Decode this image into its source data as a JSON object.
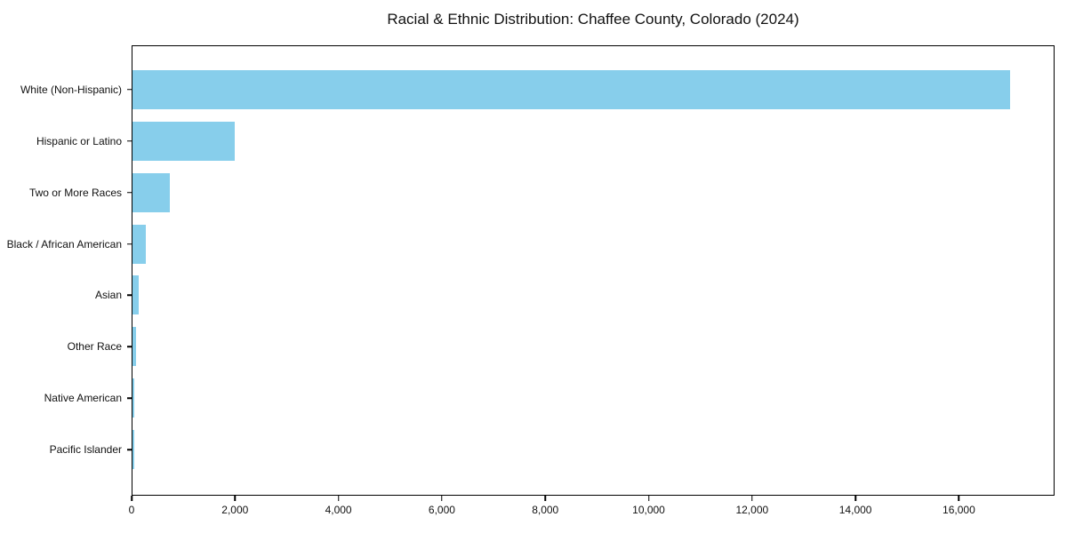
{
  "title": "Racial & Ethnic Distribution: Chaffee County, Colorado (2024)",
  "colors": {
    "bar": "#87CEEB",
    "spine": "#000000",
    "text": "#111111",
    "background": "#ffffff"
  },
  "chart_data": {
    "type": "bar",
    "orientation": "horizontal",
    "title": "Racial & Ethnic Distribution: Chaffee County, Colorado (2024)",
    "xlabel": "",
    "ylabel": "",
    "categories": [
      "White (Non-Hispanic)",
      "Hispanic or Latino",
      "Two or More Races",
      "Black / African American",
      "Asian",
      "Other Race",
      "Native American",
      "Pacific Islander"
    ],
    "values": [
      17000,
      1980,
      720,
      250,
      120,
      65,
      40,
      30
    ],
    "xlim": [
      0,
      17850
    ],
    "x_ticks": [
      0,
      2000,
      4000,
      6000,
      8000,
      10000,
      12000,
      14000,
      16000
    ],
    "x_tick_labels": [
      "0",
      "2,000",
      "4,000",
      "6,000",
      "8,000",
      "10,000",
      "12,000",
      "14,000",
      "16,000"
    ],
    "grid": false,
    "legend": "none",
    "bar_color": "#87CEEB"
  }
}
